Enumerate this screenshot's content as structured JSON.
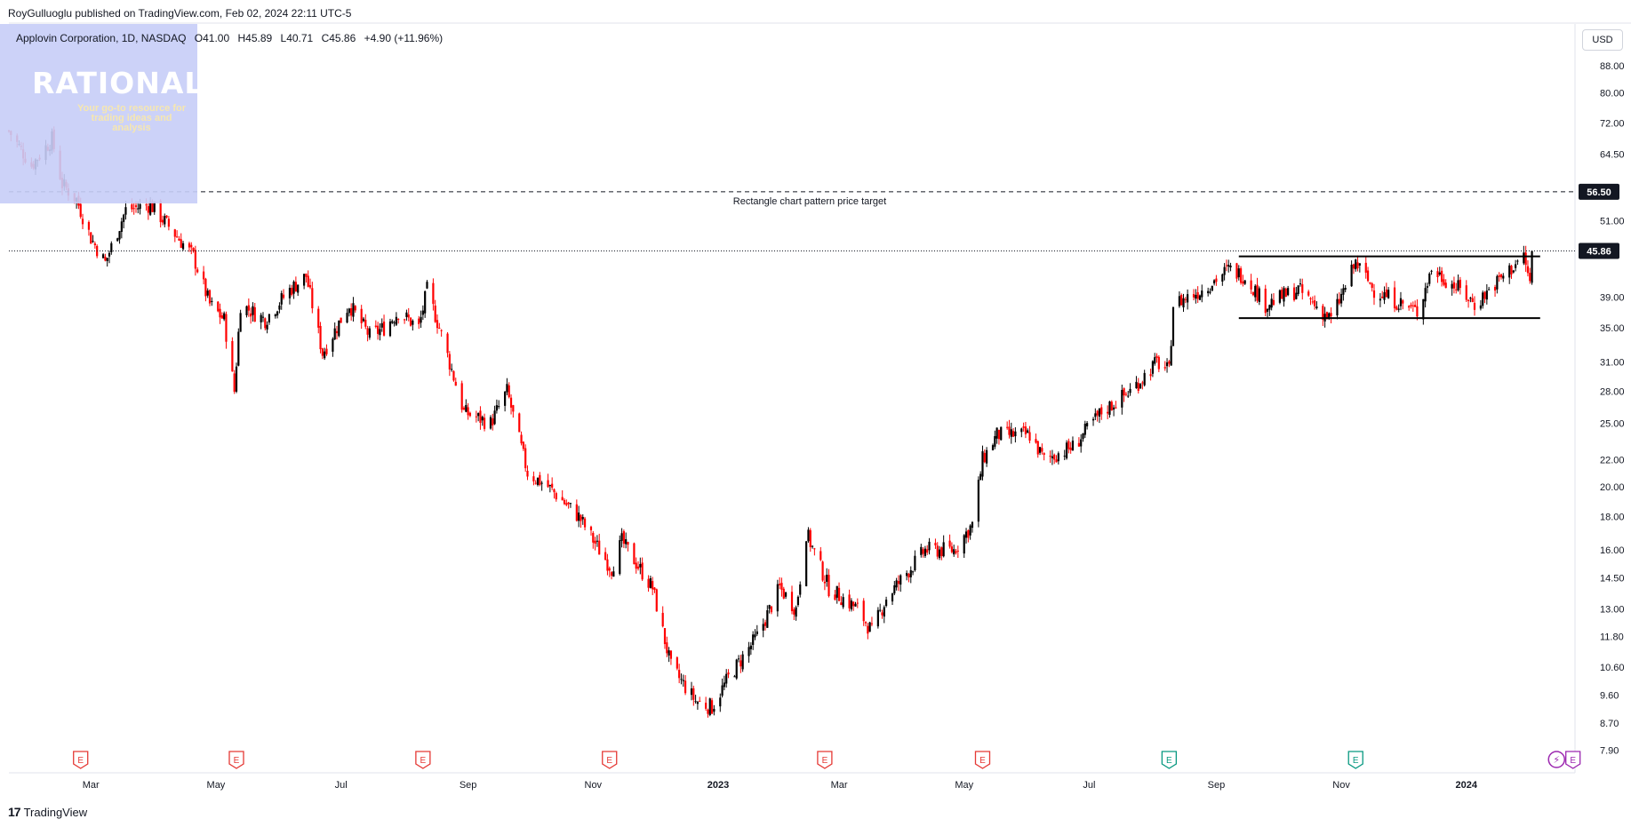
{
  "header": {
    "published": "RoyGulluoglu published on TradingView.com, Feb 02, 2024 22:11 UTC-5"
  },
  "legend": {
    "symbol": "Applovin Corporation, 1D, NASDAQ",
    "open": "O41.00",
    "high": "H45.89",
    "low": "L40.71",
    "close": "C45.86",
    "change": "+4.90 (+11.96%)",
    "up_color": "#000000",
    "down_color": "#ff0000"
  },
  "watermark": {
    "title": "RATIONALE",
    "subtitle": "Your go-to resource for trading ideas and analysis"
  },
  "currency": "USD",
  "footer": {
    "brand": "TradingView",
    "icon": "tradingview-logo-icon"
  },
  "chart_data": {
    "type": "candlestick",
    "symbol": "APP",
    "scale": "log",
    "ylim": [
      7.3,
      102
    ],
    "y_ticks": [
      7.9,
      8.7,
      9.6,
      10.6,
      11.8,
      13.0,
      14.5,
      16.0,
      18.0,
      20.0,
      22.0,
      25.0,
      28.0,
      31.0,
      35.0,
      39.0,
      45.0,
      51.0,
      56.5,
      64.5,
      72.0,
      80.0,
      88.0
    ],
    "y_tick_labels": [
      "7.90",
      "8.70",
      "9.60",
      "10.60",
      "11.80",
      "13.00",
      "14.50",
      "16.00",
      "18.00",
      "20.00",
      "22.00",
      "25.00",
      "28.00",
      "31.00",
      "35.00",
      "39.00",
      "",
      "51.00",
      "",
      "64.50",
      "72.00",
      "80.00",
      "88.00"
    ],
    "x_labels": [
      {
        "label": "Mar",
        "date": "2022-03-01"
      },
      {
        "label": "May",
        "date": "2022-05-01"
      },
      {
        "label": "Jul",
        "date": "2022-07-01"
      },
      {
        "label": "Sep",
        "date": "2022-09-01"
      },
      {
        "label": "Nov",
        "date": "2022-11-01"
      },
      {
        "label": "2023",
        "date": "2023-01-01"
      },
      {
        "label": "Mar",
        "date": "2023-03-01"
      },
      {
        "label": "May",
        "date": "2023-05-01"
      },
      {
        "label": "Jul",
        "date": "2023-07-01"
      },
      {
        "label": "Sep",
        "date": "2023-09-01"
      },
      {
        "label": "Nov",
        "date": "2023-11-01"
      },
      {
        "label": "2024",
        "date": "2024-01-01"
      }
    ],
    "x_range": [
      "2022-01-20",
      "2024-02-23"
    ],
    "price_path": [
      {
        "date": "2022-01-20",
        "price": 70
      },
      {
        "date": "2022-01-31",
        "price": 62
      },
      {
        "date": "2022-02-10",
        "price": 68
      },
      {
        "date": "2022-02-15",
        "price": 58
      },
      {
        "date": "2022-02-22",
        "price": 55
      },
      {
        "date": "2022-03-01",
        "price": 48
      },
      {
        "date": "2022-03-08",
        "price": 44
      },
      {
        "date": "2022-03-18",
        "price": 53
      },
      {
        "date": "2022-03-30",
        "price": 54
      },
      {
        "date": "2022-04-08",
        "price": 50
      },
      {
        "date": "2022-04-20",
        "price": 45
      },
      {
        "date": "2022-04-28",
        "price": 38
      },
      {
        "date": "2022-05-05",
        "price": 36
      },
      {
        "date": "2022-05-10",
        "price": 28
      },
      {
        "date": "2022-05-13",
        "price": 38
      },
      {
        "date": "2022-05-25",
        "price": 36
      },
      {
        "date": "2022-06-06",
        "price": 40
      },
      {
        "date": "2022-06-14",
        "price": 42
      },
      {
        "date": "2022-06-22",
        "price": 32
      },
      {
        "date": "2022-07-05",
        "price": 38
      },
      {
        "date": "2022-07-15",
        "price": 34
      },
      {
        "date": "2022-07-22",
        "price": 35
      },
      {
        "date": "2022-07-29",
        "price": 37
      },
      {
        "date": "2022-08-08",
        "price": 35
      },
      {
        "date": "2022-08-12",
        "price": 40
      },
      {
        "date": "2022-08-18",
        "price": 35
      },
      {
        "date": "2022-08-30",
        "price": 26
      },
      {
        "date": "2022-09-12",
        "price": 25
      },
      {
        "date": "2022-09-20",
        "price": 28
      },
      {
        "date": "2022-09-30",
        "price": 21
      },
      {
        "date": "2022-10-10",
        "price": 20
      },
      {
        "date": "2022-10-25",
        "price": 18
      },
      {
        "date": "2022-11-04",
        "price": 16
      },
      {
        "date": "2022-11-10",
        "price": 15
      },
      {
        "date": "2022-11-15",
        "price": 16.5
      },
      {
        "date": "2022-11-30",
        "price": 14
      },
      {
        "date": "2022-12-09",
        "price": 10.6
      },
      {
        "date": "2022-12-21",
        "price": 9.4
      },
      {
        "date": "2022-12-29",
        "price": 9.2
      },
      {
        "date": "2023-01-06",
        "price": 10.2
      },
      {
        "date": "2023-01-20",
        "price": 11.8
      },
      {
        "date": "2023-01-31",
        "price": 14
      },
      {
        "date": "2023-02-08",
        "price": 13
      },
      {
        "date": "2023-02-13",
        "price": 17
      },
      {
        "date": "2023-02-24",
        "price": 14
      },
      {
        "date": "2023-03-10",
        "price": 13
      },
      {
        "date": "2023-03-17",
        "price": 12
      },
      {
        "date": "2023-03-24",
        "price": 13.5
      },
      {
        "date": "2023-04-12",
        "price": 16
      },
      {
        "date": "2023-04-26",
        "price": 16
      },
      {
        "date": "2023-05-05",
        "price": 17.5
      },
      {
        "date": "2023-05-10",
        "price": 22
      },
      {
        "date": "2023-05-17",
        "price": 24
      },
      {
        "date": "2023-06-02",
        "price": 24
      },
      {
        "date": "2023-06-09",
        "price": 22
      },
      {
        "date": "2023-06-23",
        "price": 23
      },
      {
        "date": "2023-07-07",
        "price": 26
      },
      {
        "date": "2023-07-21",
        "price": 28
      },
      {
        "date": "2023-08-03",
        "price": 31
      },
      {
        "date": "2023-08-09",
        "price": 30
      },
      {
        "date": "2023-08-11",
        "price": 38
      },
      {
        "date": "2023-08-25",
        "price": 40
      },
      {
        "date": "2023-09-07",
        "price": 43
      },
      {
        "date": "2023-09-15",
        "price": 42
      },
      {
        "date": "2023-09-25",
        "price": 38
      },
      {
        "date": "2023-10-11",
        "price": 40
      },
      {
        "date": "2023-10-27",
        "price": 36
      },
      {
        "date": "2023-11-08",
        "price": 44
      },
      {
        "date": "2023-11-17",
        "price": 40
      },
      {
        "date": "2023-12-01",
        "price": 38
      },
      {
        "date": "2023-12-08",
        "price": 37
      },
      {
        "date": "2023-12-15",
        "price": 43
      },
      {
        "date": "2023-12-29",
        "price": 40
      },
      {
        "date": "2024-01-05",
        "price": 38
      },
      {
        "date": "2024-01-19",
        "price": 42
      },
      {
        "date": "2024-01-29",
        "price": 45
      },
      {
        "date": "2024-02-01",
        "price": 41
      },
      {
        "date": "2024-02-02",
        "price": 45.86
      }
    ],
    "last_bar": {
      "date": "2024-02-02",
      "open": 41.0,
      "high": 45.89,
      "low": 40.71,
      "close": 45.86
    },
    "price_labels": [
      {
        "label": "56.50",
        "value": 56.5
      },
      {
        "label": "45.86",
        "value": 45.86
      }
    ],
    "target_line": {
      "price": 56.5,
      "label": "Rectangle chart pattern price target",
      "style": "dashed"
    },
    "last_price_line": {
      "price": 45.86,
      "style": "dotted"
    },
    "rectangle_pattern": {
      "start": "2023-09-12",
      "end": "2024-02-06",
      "top": 45.0,
      "bottom": 36.2
    },
    "events": [
      {
        "date": "2022-02-24",
        "type": "E"
      },
      {
        "date": "2022-05-11",
        "type": "E"
      },
      {
        "date": "2022-08-10",
        "type": "E"
      },
      {
        "date": "2022-11-09",
        "type": "E"
      },
      {
        "date": "2023-02-22",
        "type": "E"
      },
      {
        "date": "2023-05-10",
        "type": "E"
      },
      {
        "date": "2023-08-09",
        "type": "E"
      },
      {
        "date": "2023-11-08",
        "type": "E"
      },
      {
        "date": "2024-02-14",
        "type": "split"
      },
      {
        "date": "2024-02-22",
        "type": "E"
      }
    ],
    "title": "",
    "xlabel": "",
    "ylabel": ""
  }
}
